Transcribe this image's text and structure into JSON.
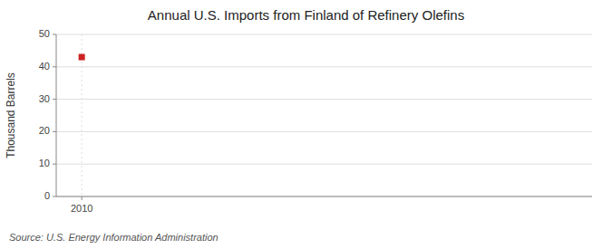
{
  "chart_data": {
    "type": "scatter",
    "title": "Annual U.S. Imports from Finland of Refinery Olefins",
    "y_label": "Thousand Barrels",
    "source": "Source: U.S. Energy Information Administration",
    "x": [
      2010
    ],
    "values": [
      43
    ],
    "color": "#cc2222",
    "marker": "square",
    "xlim": [
      2009.4,
      2022
    ],
    "xticks": [
      2010
    ],
    "ylim": [
      0,
      50
    ],
    "yticks": [
      0,
      10,
      20,
      30,
      40,
      50
    ],
    "grid": true
  }
}
